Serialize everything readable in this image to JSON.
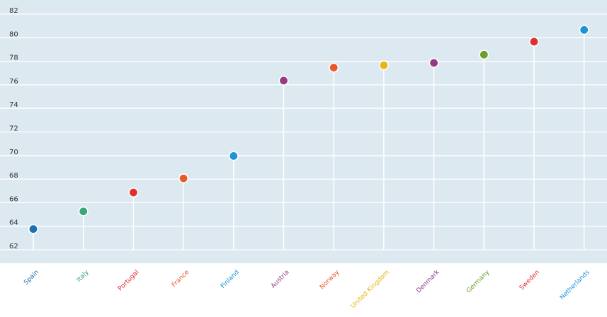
{
  "chart_data": {
    "type": "scatter",
    "title": "",
    "xlabel": "",
    "ylabel": "",
    "ylim": [
      61,
      83
    ],
    "yticks": [
      62,
      64,
      66,
      68,
      70,
      72,
      74,
      76,
      78,
      80,
      82
    ],
    "grid": true,
    "legend": "none",
    "categories": [
      "Spain",
      "Italy",
      "Portugal",
      "France",
      "Finland",
      "Austria",
      "Norway",
      "United Kingdom",
      "Denmark",
      "Germany",
      "Sweden",
      "Netherlands"
    ],
    "values": [
      63.4,
      64.9,
      66.5,
      67.7,
      69.6,
      76.0,
      77.1,
      77.3,
      77.5,
      78.2,
      79.3,
      80.3
    ],
    "colors": [
      "#1a6fb5",
      "#3aa876",
      "#e0302e",
      "#e9592a",
      "#1c94d6",
      "#963a84",
      "#e9592a",
      "#e7b51a",
      "#963a84",
      "#6f9e2c",
      "#e0302e",
      "#1c94d6"
    ],
    "plot_background": "#dde9f1",
    "grid_color": "#ffffff"
  }
}
